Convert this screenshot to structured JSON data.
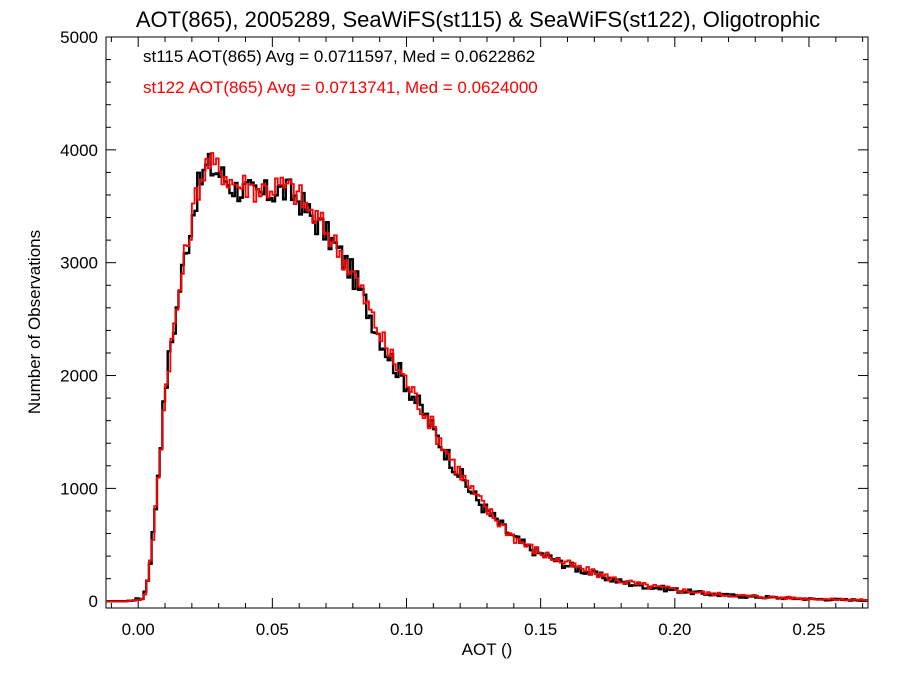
{
  "chart_data": {
    "type": "line",
    "title": "AOT(865), 2005289, SeaWiFS(st115) & SeaWiFS(st122), Oligotrophic",
    "xlabel": "AOT ()",
    "ylabel": "Number of Observations",
    "xlim": [
      -0.012,
      0.272
    ],
    "ylim": [
      -60,
      5000
    ],
    "x_ticks": [
      0.0,
      0.05,
      0.1,
      0.15,
      0.2,
      0.25
    ],
    "x_tick_labels": [
      "0.00",
      "0.05",
      "0.10",
      "0.15",
      "0.20",
      "0.25"
    ],
    "y_ticks": [
      0,
      1000,
      2000,
      3000,
      4000,
      5000
    ],
    "y_tick_labels": [
      "0",
      "1000",
      "2000",
      "3000",
      "4000",
      "5000"
    ],
    "grid": false,
    "legend_position": "top-left",
    "bin_width": 0.001,
    "x": [
      -0.012,
      -0.004,
      0.002,
      0.004,
      0.005,
      0.006,
      0.007,
      0.008,
      0.009,
      0.01,
      0.012,
      0.014,
      0.016,
      0.018,
      0.02,
      0.022,
      0.024,
      0.026,
      0.028,
      0.03,
      0.032,
      0.034,
      0.036,
      0.04,
      0.044,
      0.048,
      0.052,
      0.056,
      0.06,
      0.064,
      0.068,
      0.072,
      0.076,
      0.08,
      0.084,
      0.088,
      0.092,
      0.096,
      0.1,
      0.104,
      0.108,
      0.112,
      0.116,
      0.12,
      0.125,
      0.13,
      0.135,
      0.14,
      0.145,
      0.15,
      0.16,
      0.17,
      0.18,
      0.19,
      0.2,
      0.21,
      0.22,
      0.23,
      0.24,
      0.25,
      0.26,
      0.272
    ],
    "series": [
      {
        "name": "st115",
        "color": "#000000",
        "values": [
          0,
          0,
          30,
          250,
          480,
          700,
          980,
          1300,
          1560,
          1850,
          2250,
          2500,
          2870,
          3120,
          3380,
          3640,
          3760,
          3870,
          3820,
          3800,
          3760,
          3700,
          3660,
          3640,
          3600,
          3610,
          3640,
          3630,
          3560,
          3420,
          3320,
          3200,
          3050,
          2900,
          2680,
          2460,
          2250,
          2080,
          1930,
          1760,
          1610,
          1430,
          1270,
          1120,
          940,
          800,
          680,
          560,
          480,
          420,
          320,
          240,
          170,
          130,
          100,
          70,
          50,
          40,
          30,
          20,
          15,
          10
        ]
      },
      {
        "name": "st122",
        "color": "#ff0000",
        "values": [
          0,
          0,
          20,
          220,
          450,
          680,
          960,
          1280,
          1540,
          1830,
          2230,
          2490,
          2860,
          3110,
          3380,
          3650,
          3780,
          3890,
          3850,
          3830,
          3800,
          3740,
          3700,
          3690,
          3650,
          3660,
          3680,
          3660,
          3600,
          3450,
          3350,
          3220,
          3070,
          2920,
          2700,
          2480,
          2270,
          2100,
          1950,
          1780,
          1630,
          1450,
          1290,
          1140,
          960,
          810,
          690,
          570,
          490,
          430,
          330,
          250,
          180,
          135,
          105,
          75,
          55,
          42,
          32,
          22,
          16,
          11
        ]
      }
    ],
    "legend": [
      {
        "text": "st115 AOT(865) Avg = 0.0711597, Med = 0.0622862",
        "color": "#000000"
      },
      {
        "text": "st122 AOT(865) Avg = 0.0713741, Med = 0.0624000",
        "color": "#ff0000"
      }
    ]
  }
}
